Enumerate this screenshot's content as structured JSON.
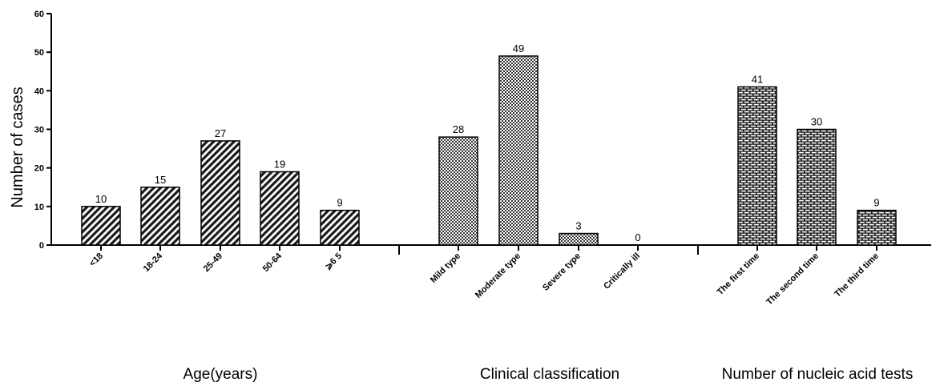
{
  "chart_data": {
    "type": "bar",
    "ylabel": "Number of cases",
    "ylim": [
      0,
      60
    ],
    "yticks": [
      0,
      10,
      20,
      30,
      40,
      50,
      60
    ],
    "groups": [
      {
        "name": "Age(years)",
        "pattern": "diagonal-hatch",
        "categories": [
          "<18",
          "18-24",
          "25-49",
          "50-64",
          "⩾6 5"
        ],
        "values": [
          10,
          15,
          27,
          19,
          9
        ]
      },
      {
        "name": "Clinical classification",
        "pattern": "checkerboard",
        "categories": [
          "Mild type",
          "Moderate type",
          "Severe type",
          "Critically ill"
        ],
        "values": [
          28,
          49,
          3,
          0
        ]
      },
      {
        "name": "Number of nucleic acid tests",
        "pattern": "brick",
        "categories": [
          "The first time",
          "The second time",
          "The third time"
        ],
        "values": [
          41,
          30,
          9
        ]
      }
    ],
    "grid": false,
    "legend": "none"
  }
}
